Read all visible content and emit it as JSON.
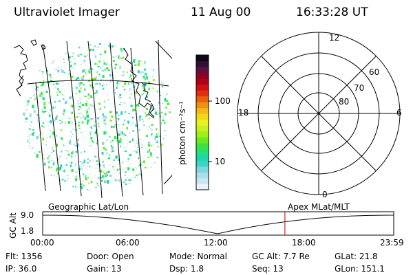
{
  "header": {
    "instrument": "Ultraviolet Imager",
    "date": "11 Aug 00",
    "time": "16:33:28 UT"
  },
  "colorbar": {
    "unit_label": "photon cm⁻²s⁻¹",
    "tick_labels": [
      "100",
      "10"
    ],
    "tick_values": [
      100,
      10
    ],
    "colors": [
      "#e8f4f8",
      "#c8e8ef",
      "#a8dfe6",
      "#7fd6dc",
      "#3cd3c8",
      "#1ed6a8",
      "#22e07a",
      "#3ee23a",
      "#6ee81e",
      "#9eef18",
      "#c8f020",
      "#e8f020",
      "#f0d818",
      "#f4b818",
      "#f09010",
      "#e86010",
      "#e03010",
      "#d01010",
      "#b00018",
      "#900020",
      "#601040",
      "#301038",
      "#100818"
    ]
  },
  "polar": {
    "mlt_labels": [
      "12",
      "6",
      "0",
      "18"
    ],
    "lat_labels": [
      "60",
      "70",
      "80"
    ]
  },
  "geo_label": "Geographic Lat/Lon",
  "apex_label": "Apex MLat/MLT",
  "altitude_plot": {
    "ylabel": "GC Alt",
    "y_ticks": [
      "9.0",
      "1.8"
    ],
    "x_ticks": [
      "00:00",
      "06:00",
      "12:00",
      "18:00",
      "23:59"
    ],
    "current_time_hours": 16.56,
    "marker_color": "#cc2020"
  },
  "info": {
    "flt": "Flt: 1356",
    "ip": "IP: 36.0",
    "door": "Door: Open",
    "gain": "Gain: 13",
    "mode": "Mode: Normal",
    "dsp": "Dsp:    1.8",
    "gcalt": "GC Alt: 7.7 Re",
    "seq": "Seq: 13",
    "glat": "GLat:  21.8",
    "glon": "GLon: 151.1"
  }
}
